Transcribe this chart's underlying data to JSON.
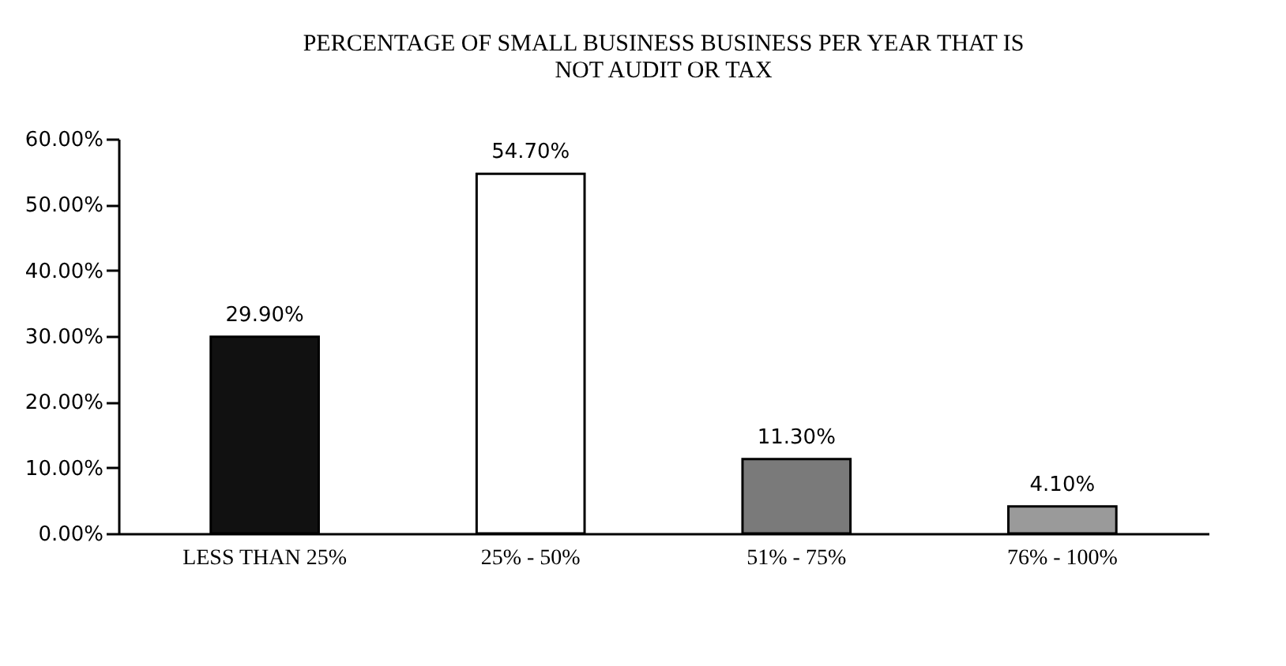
{
  "chart_data": {
    "type": "bar",
    "title": "PERCENTAGE OF SMALL BUSINESS BUSINESS PER YEAR THAT IS NOT AUDIT OR TAX",
    "categories": [
      "LESS THAN 25%",
      "25% - 50%",
      "51% - 75%",
      "76% - 100%"
    ],
    "values": [
      29.9,
      54.7,
      11.3,
      4.1
    ],
    "colors": [
      "#111111",
      "#ffffff",
      "#7a7a7a",
      "#9a9a9a"
    ],
    "value_labels": [
      "29.90%",
      "54.70%",
      "11.30%",
      "4.10%"
    ],
    "ylim": [
      0,
      60
    ],
    "yticks": [
      {
        "value": 0,
        "label": "0.00%"
      },
      {
        "value": 10,
        "label": "10.00%"
      },
      {
        "value": 20,
        "label": "20.00%"
      },
      {
        "value": 30,
        "label": "30.00%"
      },
      {
        "value": 40,
        "label": "40.00%"
      },
      {
        "value": 50,
        "label": "50.00%"
      },
      {
        "value": 60,
        "label": "60.00%"
      }
    ],
    "grid": false,
    "legend": false
  }
}
